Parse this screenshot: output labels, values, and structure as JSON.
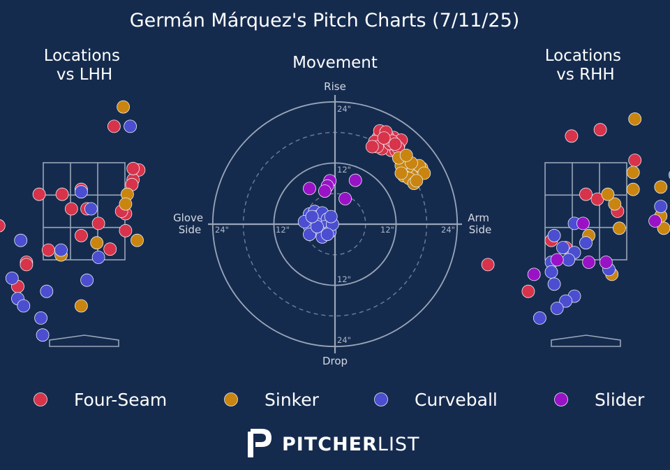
{
  "title": "Germán Márquez's Pitch Charts (7/11/25)",
  "logo": {
    "bold": "PITCHER",
    "light": "LIST"
  },
  "colors": {
    "Four-Seam": "#d7334a",
    "Sinker": "#c98510",
    "Curveball": "#4b4ed0",
    "Slider": "#9a12c6"
  },
  "legend": [
    "Four-Seam",
    "Sinker",
    "Curveball",
    "Slider"
  ],
  "chart_data": [
    {
      "type": "scatter",
      "title": "Locations\nvs LHH",
      "xlim": [
        -2.0,
        2.0
      ],
      "ylim": [
        -0.1,
        5.1
      ],
      "series": [
        {
          "name": "Four-Seam",
          "points": [
            [
              0.52,
              4.25
            ],
            [
              -0.38,
              2.85
            ],
            [
              -0.05,
              2.95
            ],
            [
              -0.78,
              2.85
            ],
            [
              -0.22,
              2.55
            ],
            [
              0.05,
              2.55
            ],
            [
              0.72,
              2.45
            ],
            [
              0.95,
              3.35
            ],
            [
              0.85,
              3.15
            ],
            [
              0.83,
              3.05
            ],
            [
              0.65,
              2.5
            ],
            [
              0.25,
              2.25
            ],
            [
              0.72,
              2.1
            ],
            [
              -1.48,
              2.2
            ],
            [
              -0.05,
              2.0
            ],
            [
              0.85,
              3.38
            ],
            [
              -1.8,
              1.98
            ],
            [
              -0.62,
              1.7
            ],
            [
              -1.0,
              1.45
            ],
            [
              0.45,
              1.72
            ],
            [
              -1.0,
              1.4
            ],
            [
              -1.15,
              0.95
            ]
          ]
        },
        {
          "name": "Sinker",
          "points": [
            [
              0.68,
              4.65
            ],
            [
              -2.05,
              2.6
            ],
            [
              0.75,
              2.85
            ],
            [
              0.72,
              2.65
            ],
            [
              0.92,
              1.9
            ],
            [
              0.22,
              1.85
            ],
            [
              -0.4,
              1.6
            ],
            [
              -0.05,
              0.55
            ]
          ]
        },
        {
          "name": "Curveball",
          "points": [
            [
              0.8,
              4.25
            ],
            [
              -0.05,
              2.9
            ],
            [
              0.12,
              2.55
            ],
            [
              -1.1,
              1.9
            ],
            [
              -0.4,
              1.7
            ],
            [
              0.25,
              1.55
            ],
            [
              -1.25,
              1.12
            ],
            [
              0.05,
              1.08
            ],
            [
              -0.65,
              0.85
            ],
            [
              -1.15,
              0.7
            ],
            [
              -1.05,
              0.55
            ],
            [
              -0.75,
              0.3
            ],
            [
              -0.72,
              -0.05
            ]
          ]
        },
        {
          "name": "Slider",
          "points": []
        }
      ]
    },
    {
      "type": "scatter",
      "title": "Movement",
      "axis_labels": {
        "top": "Rise",
        "bottom": "Drop",
        "left": "Glove\nSide",
        "right": "Arm\nSide"
      },
      "rings": [
        12,
        24
      ],
      "dashed_rings": [
        6,
        18
      ],
      "ring_labels": [
        "12\"",
        "24\""
      ],
      "xlim": [
        -24,
        24
      ],
      "ylim": [
        -24,
        24
      ],
      "series": [
        {
          "name": "Four-Seam",
          "points": [
            [
              8.5,
              17
            ],
            [
              9,
              16.5
            ],
            [
              10,
              16
            ],
            [
              11.5,
              17
            ],
            [
              10.5,
              15
            ],
            [
              9.5,
              15.5
            ],
            [
              12.5,
              15.5
            ],
            [
              11,
              14.5
            ],
            [
              10.3,
              17.2
            ],
            [
              8.8,
              18.3
            ],
            [
              7.8,
              16.2
            ],
            [
              12,
              14.4
            ],
            [
              9.2,
              14.8
            ],
            [
              10.8,
              15.8
            ],
            [
              13,
              16.5
            ],
            [
              8.3,
              15.2
            ],
            [
              10,
              18.1
            ],
            [
              11.2,
              16.3
            ],
            [
              12.4,
              15
            ],
            [
              7.3,
              15.2
            ],
            [
              9.6,
              16.9
            ],
            [
              11.8,
              15.7
            ]
          ]
        },
        {
          "name": "Sinker",
          "points": [
            [
              13.5,
              12
            ],
            [
              14.5,
              11
            ],
            [
              13,
              11.5
            ],
            [
              15,
              10
            ],
            [
              16,
              9.5
            ],
            [
              17,
              11
            ],
            [
              13.5,
              9.5
            ],
            [
              14.5,
              9
            ],
            [
              15.5,
              8
            ],
            [
              16.5,
              11.5
            ],
            [
              12.5,
              13
            ],
            [
              15,
              12
            ],
            [
              17.5,
              10
            ],
            [
              16,
              8.5
            ],
            [
              13,
              10
            ],
            [
              14,
              13.5
            ]
          ]
        },
        {
          "name": "Curveball",
          "points": [
            [
              -5,
              2
            ],
            [
              -4,
              2.5
            ],
            [
              -3.5,
              1.5
            ],
            [
              -4.5,
              0
            ],
            [
              -3,
              0.5
            ],
            [
              -2.5,
              2.2
            ],
            [
              -1.5,
              1
            ],
            [
              -2,
              -0.5
            ],
            [
              -4,
              -1
            ],
            [
              -5,
              -0.5
            ],
            [
              -3,
              -1.5
            ],
            [
              -1,
              -1.5
            ],
            [
              -5,
              -2
            ],
            [
              -2.5,
              -2.5
            ],
            [
              -0.5,
              0
            ],
            [
              -6,
              0.5
            ],
            [
              -3.5,
              -0.5
            ],
            [
              -1.5,
              -2
            ],
            [
              -4.5,
              1.5
            ],
            [
              -0.8,
              1.5
            ]
          ]
        },
        {
          "name": "Slider",
          "points": [
            [
              -1,
              8.5
            ],
            [
              -1.5,
              7.5
            ],
            [
              -5,
              7
            ],
            [
              -2,
              6.5
            ],
            [
              4,
              8.6
            ],
            [
              2,
              5
            ]
          ]
        }
      ]
    },
    {
      "type": "scatter",
      "title": "Locations\nvs RHH",
      "xlim": [
        -2.0,
        2.0
      ],
      "ylim": [
        -0.1,
        5.1
      ],
      "series": [
        {
          "name": "Four-Seam",
          "points": [
            [
              -0.25,
              4.05
            ],
            [
              0.25,
              4.18
            ],
            [
              0.85,
              3.55
            ],
            [
              0.2,
              2.75
            ],
            [
              0.55,
              2.5
            ],
            [
              0.0,
              2.85
            ],
            [
              -0.6,
              1.9
            ],
            [
              -0.35,
              1.75
            ],
            [
              -1.7,
              1.4
            ],
            [
              -1.0,
              0.85
            ]
          ]
        },
        {
          "name": "Sinker",
          "points": [
            [
              0.85,
              4.4
            ],
            [
              1.55,
              3.25
            ],
            [
              1.3,
              3.0
            ],
            [
              0.82,
              3.3
            ],
            [
              0.82,
              2.95
            ],
            [
              0.5,
              2.65
            ],
            [
              0.38,
              2.85
            ],
            [
              1.3,
              2.4
            ],
            [
              1.35,
              2.15
            ],
            [
              0.58,
              2.15
            ],
            [
              0.05,
              2.0
            ],
            [
              0.45,
              1.2
            ]
          ]
        },
        {
          "name": "Curveball",
          "points": [
            [
              1.3,
              2.6
            ],
            [
              -0.2,
              2.25
            ],
            [
              -0.55,
              2.0
            ],
            [
              0.0,
              1.85
            ],
            [
              -0.4,
              1.75
            ],
            [
              -0.2,
              1.65
            ],
            [
              -0.6,
              1.45
            ],
            [
              -0.3,
              1.5
            ],
            [
              0.4,
              1.3
            ],
            [
              -0.6,
              1.25
            ],
            [
              -0.55,
              1.0
            ],
            [
              -0.2,
              0.75
            ],
            [
              -0.35,
              0.65
            ],
            [
              -0.5,
              0.5
            ],
            [
              -0.8,
              0.3
            ]
          ]
        },
        {
          "name": "Slider",
          "points": [
            [
              -0.05,
              2.25
            ],
            [
              1.2,
              2.3
            ],
            [
              -0.5,
              1.5
            ],
            [
              0.05,
              1.45
            ],
            [
              0.35,
              1.45
            ],
            [
              -0.9,
              1.2
            ]
          ]
        }
      ]
    }
  ]
}
